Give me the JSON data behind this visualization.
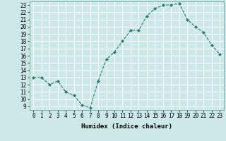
{
  "x": [
    0,
    1,
    2,
    3,
    4,
    5,
    6,
    7,
    8,
    9,
    10,
    11,
    12,
    13,
    14,
    15,
    16,
    17,
    18,
    19,
    20,
    21,
    22,
    23
  ],
  "y": [
    13,
    13,
    12,
    12.5,
    11,
    10.5,
    9.2,
    8.8,
    12.5,
    15.5,
    16.5,
    18,
    19.5,
    19.5,
    21.5,
    22.5,
    23,
    23,
    23.2,
    21,
    20,
    19.2,
    17.5,
    16.2
  ],
  "line_color": "#2e7d6e",
  "marker": "D",
  "marker_size": 2.0,
  "bg_color": "#cce8e8",
  "grid_color": "#ffffff",
  "title": "",
  "xlabel": "Humidex (Indice chaleur)",
  "ylabel": "",
  "xlim": [
    -0.5,
    23.5
  ],
  "ylim": [
    8.5,
    23.5
  ],
  "yticks": [
    9,
    10,
    11,
    12,
    13,
    14,
    15,
    16,
    17,
    18,
    19,
    20,
    21,
    22,
    23
  ],
  "xticks": [
    0,
    1,
    2,
    3,
    4,
    5,
    6,
    7,
    8,
    9,
    10,
    11,
    12,
    13,
    14,
    15,
    16,
    17,
    18,
    19,
    20,
    21,
    22,
    23
  ],
  "tick_fontsize": 5.5,
  "xlabel_fontsize": 6.5
}
